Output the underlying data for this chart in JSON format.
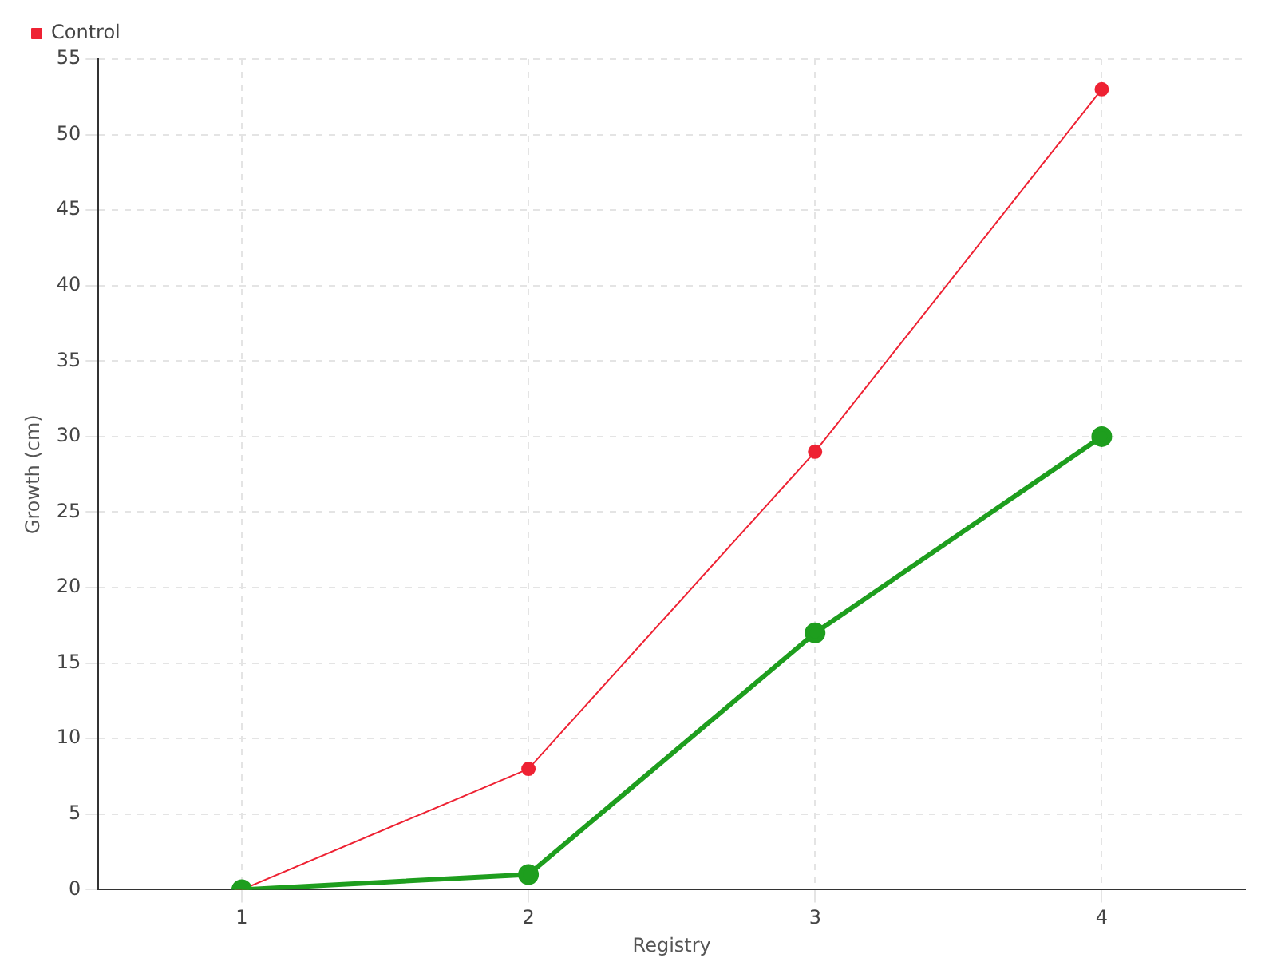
{
  "chart_data": {
    "type": "line",
    "xlabel": "Registry",
    "ylabel": "Growth (cm)",
    "categories": [
      "1",
      "2",
      "3",
      "4"
    ],
    "series": [
      {
        "color": "#1e9e1e",
        "values": [
          0,
          1,
          17,
          30
        ]
      },
      {
        "name": "Control",
        "color": "#ee2233",
        "values": [
          0,
          8,
          29,
          53
        ]
      }
    ],
    "ylim": [
      0,
      55
    ],
    "yticks": [
      0,
      5,
      10,
      15,
      20,
      25,
      30,
      35,
      40,
      45,
      50,
      55
    ],
    "grid": true,
    "legend": "top left",
    "marker": "circle",
    "line_style": "solid"
  }
}
